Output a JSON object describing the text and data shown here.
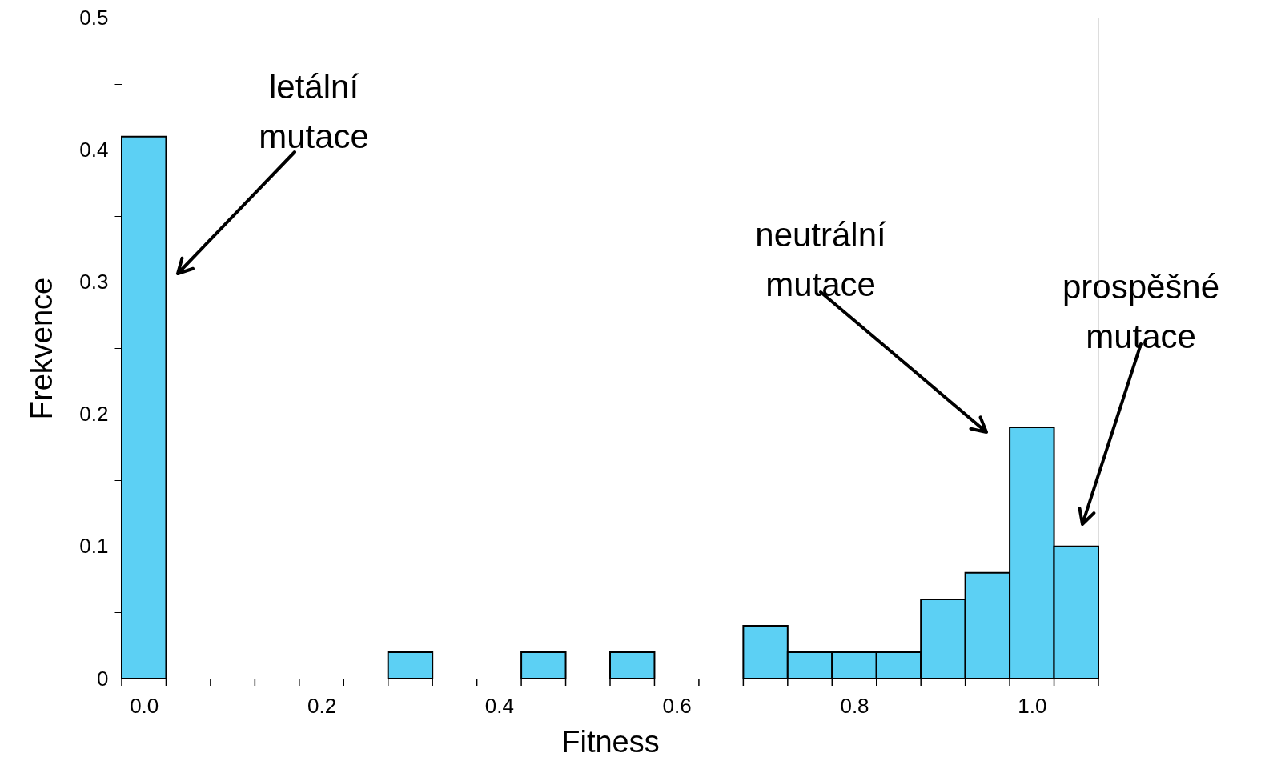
{
  "chart_data": {
    "type": "histogram",
    "bins": [
      -0.025,
      0.025,
      0.075,
      0.125,
      0.175,
      0.225,
      0.275,
      0.325,
      0.375,
      0.425,
      0.475,
      0.525,
      0.575,
      0.625,
      0.675,
      0.725,
      0.775,
      0.825,
      0.875,
      0.925,
      0.975,
      1.025,
      1.075
    ],
    "values": [
      0.41,
      0,
      0,
      0,
      0,
      0,
      0.02,
      0,
      0,
      0.02,
      0,
      0.02,
      0,
      0,
      0.04,
      0.02,
      0.02,
      0.02,
      0.06,
      0.08,
      0.19,
      0.1
    ],
    "color": "#5cd0f4",
    "xlabel": "Fitness",
    "ylabel": "Frekvence",
    "xlim": [
      -0.025,
      1.075
    ],
    "xticks": [
      {
        "value": 0,
        "label": "0.0"
      },
      {
        "value": 0.2,
        "label": "0.2"
      },
      {
        "value": 0.4,
        "label": "0.4"
      },
      {
        "value": 0.6,
        "label": "0.6"
      },
      {
        "value": 0.8,
        "label": "0.8"
      },
      {
        "value": 1.0,
        "label": "1.0"
      },
      {
        "value": -0.025,
        "label": null
      },
      {
        "value": 0.025,
        "label": null
      },
      {
        "value": 0.075,
        "label": null
      },
      {
        "value": 0.125,
        "label": null
      },
      {
        "value": 0.175,
        "label": null
      },
      {
        "value": 0.225,
        "label": null
      },
      {
        "value": 0.275,
        "label": null
      },
      {
        "value": 0.325,
        "label": null
      },
      {
        "value": 0.375,
        "label": null
      },
      {
        "value": 0.425,
        "label": null
      },
      {
        "value": 0.475,
        "label": null
      },
      {
        "value": 0.525,
        "label": null
      },
      {
        "value": 0.575,
        "label": null
      },
      {
        "value": 0.625,
        "label": null
      },
      {
        "value": 0.675,
        "label": null
      },
      {
        "value": 0.725,
        "label": null
      },
      {
        "value": 0.775,
        "label": null
      },
      {
        "value": 0.825,
        "label": null
      },
      {
        "value": 0.875,
        "label": null
      },
      {
        "value": 0.925,
        "label": null
      },
      {
        "value": 0.975,
        "label": null
      },
      {
        "value": 1.025,
        "label": null
      },
      {
        "value": 1.075,
        "label": null
      }
    ],
    "ylim": [
      0,
      0.5
    ],
    "yticks": [
      0,
      0.1,
      0.2,
      0.3,
      0.4,
      0.5,
      {
        "value": 0.05,
        "label": null
      },
      {
        "value": 0.15,
        "label": null
      },
      {
        "value": 0.25,
        "label": null
      },
      {
        "value": 0.35,
        "label": null
      },
      {
        "value": 0.45,
        "label": null
      }
    ],
    "grid": false,
    "annotations": [
      "letální\nmutace",
      "neutrální\nmutace",
      "prospěšné\nmutace"
    ]
  }
}
